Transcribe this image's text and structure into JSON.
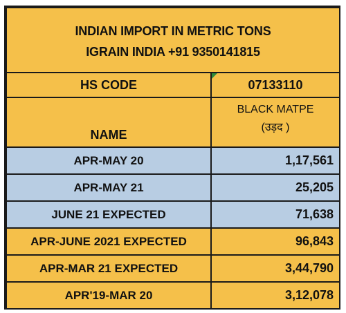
{
  "title": {
    "line1": "INDIAN IMPORT IN METRIC TONS",
    "line2": "IGRAIN INDIA +91 9350141815"
  },
  "hs_code": {
    "label": "HS CODE",
    "value": "07133110"
  },
  "name": {
    "label": "NAME",
    "value_line1": "BLACK MATPE",
    "value_line2": "(उड़द )"
  },
  "rows": [
    {
      "label": "APR-MAY 20",
      "value": "1,17,561",
      "fill": "blue"
    },
    {
      "label": "APR-MAY 21",
      "value": "25,205",
      "fill": "blue"
    },
    {
      "label": "JUNE 21 EXPECTED",
      "value": "71,638",
      "fill": "blue"
    },
    {
      "label": "APR-JUNE 2021 EXPECTED",
      "value": "96,843",
      "fill": "gold"
    },
    {
      "label": "APR-MAR 21 EXPECTED",
      "value": "3,44,790",
      "fill": "gold"
    },
    {
      "label": "APR'19-MAR 20",
      "value": "3,12,078",
      "fill": "gold"
    }
  ],
  "colors": {
    "gold": "#f5c04a",
    "blue": "#b8cde3",
    "border": "#1a1a1a"
  }
}
